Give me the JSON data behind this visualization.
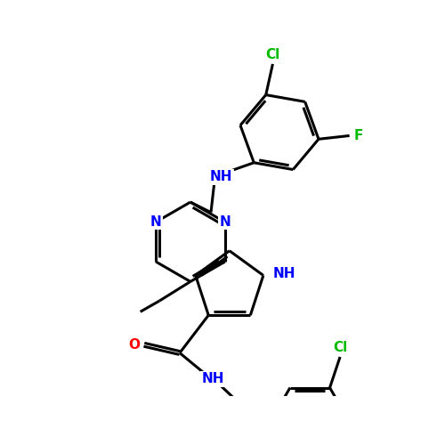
{
  "background_color": "#ffffff",
  "bond_color": "#000000",
  "bond_width": 2.2,
  "atom_colors": {
    "N": "#0000ff",
    "O": "#ff0000",
    "Cl": "#00bb00",
    "F": "#00bb00",
    "HO": "#ff0000",
    "NH": "#0000ff",
    "C": "#000000"
  },
  "font_size": 11,
  "figsize": [
    5.0,
    5.0
  ],
  "dpi": 100
}
